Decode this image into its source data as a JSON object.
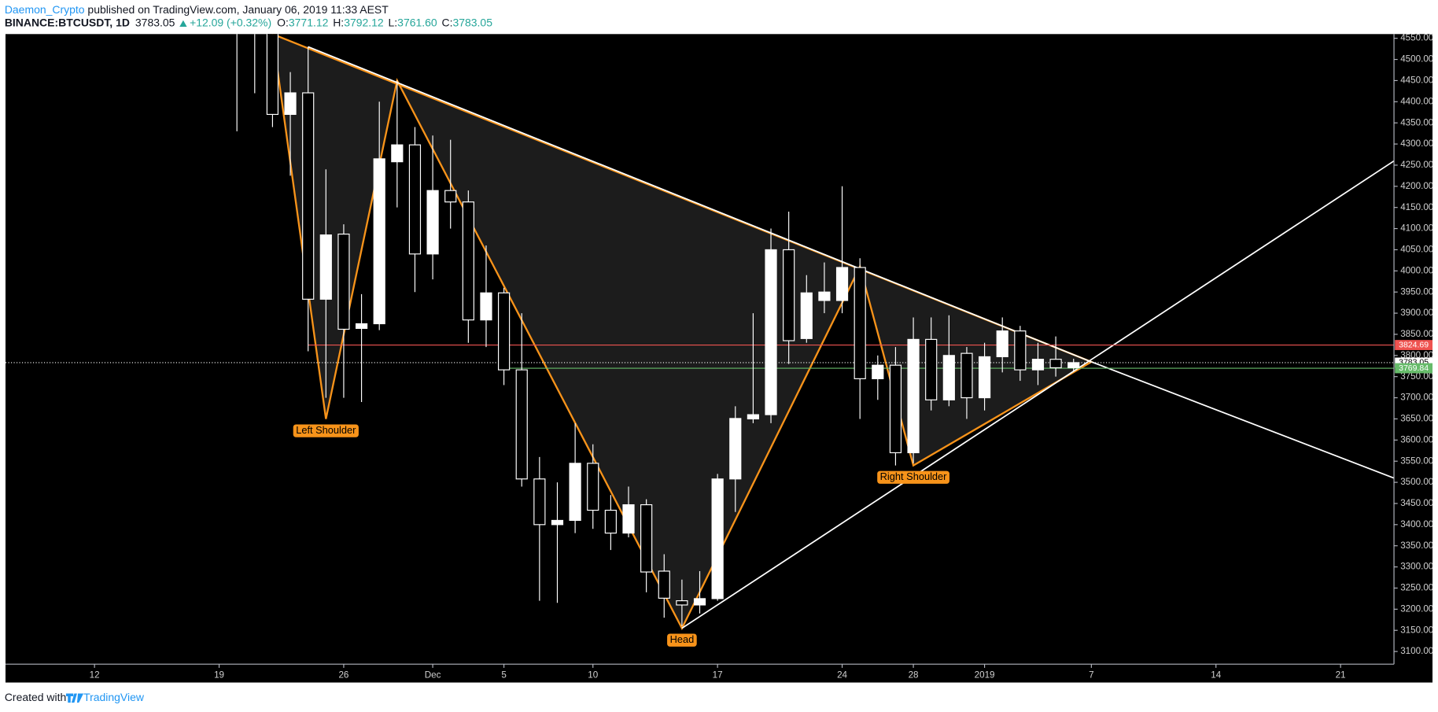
{
  "header": {
    "author": "Daemon_Crypto",
    "published": " published on TradingView.com, January 06, 2019 11:33 AEST",
    "symbol": "BINANCE:BTCUSDT, 1D",
    "last": "3783.05",
    "change": "+12.09 (+0.32%)",
    "open_label": "O:",
    "open": "3771.12",
    "high_label": "H:",
    "high": "3792.12",
    "low_label": "L:",
    "low": "3761.60",
    "close_label": "C:",
    "close": "3783.05"
  },
  "footer": {
    "created": "Created with",
    "brand": "TradingView"
  },
  "chart_data": {
    "type": "candlestick",
    "x": [
      "Nov 20",
      "Nov 21",
      "Nov 22",
      "Nov 23",
      "Nov 24",
      "Nov 25",
      "Nov 26",
      "Nov 27",
      "Nov 28",
      "Nov 29",
      "Nov 30",
      "Dec 1",
      "Dec 2",
      "Dec 3",
      "Dec 4",
      "Dec 5",
      "Dec 6",
      "Dec 7",
      "Dec 8",
      "Dec 9",
      "Dec 10",
      "Dec 11",
      "Dec 12",
      "Dec 13",
      "Dec 14",
      "Dec 15",
      "Dec 16",
      "Dec 17",
      "Dec 18",
      "Dec 19",
      "Dec 20",
      "Dec 21",
      "Dec 22",
      "Dec 23",
      "Dec 24",
      "Dec 25",
      "Dec 26",
      "Dec 27",
      "Dec 28",
      "Dec 29",
      "Dec 30",
      "Dec 31",
      "Jan 1",
      "Jan 2",
      "Jan 3",
      "Jan 4",
      "Jan 5",
      "Jan 6"
    ],
    "open": [
      4700,
      4575,
      4565,
      4370,
      4421,
      3933,
      4087,
      3864,
      3875,
      4258,
      4298,
      4040,
      4190,
      4163,
      3884,
      3948,
      3766,
      3508,
      3400,
      3410,
      3545,
      3434,
      3380,
      3447,
      3290,
      3220,
      3210,
      3225,
      3508,
      3650,
      3660,
      4050,
      3840,
      3930,
      3930,
      4008,
      3745,
      3777,
      3570,
      3838,
      3695,
      3805,
      3700,
      3797,
      3858,
      3766,
      3791,
      3771.12
    ],
    "high": [
      4780,
      4620,
      4600,
      4470,
      4530,
      4240,
      4110,
      3945,
      4400,
      4450,
      4340,
      4320,
      4310,
      4190,
      4060,
      3960,
      3900,
      3560,
      3500,
      3640,
      3590,
      3470,
      3490,
      3460,
      3330,
      3270,
      3290,
      3520,
      3680,
      3900,
      4100,
      4140,
      3990,
      4020,
      4200,
      4030,
      3800,
      3820,
      3890,
      3890,
      3895,
      3820,
      3830,
      3890,
      3870,
      3830,
      3845,
      3792.12
    ],
    "low": [
      4330,
      4420,
      4340,
      4225,
      3810,
      3700,
      3700,
      3690,
      3860,
      4150,
      3950,
      3980,
      4100,
      3830,
      3820,
      3730,
      3490,
      3220,
      3215,
      3380,
      3390,
      3340,
      3370,
      3240,
      3180,
      3160,
      3190,
      3220,
      3430,
      3640,
      3640,
      3780,
      3830,
      3900,
      3900,
      3650,
      3695,
      3540,
      3545,
      3670,
      3680,
      3650,
      3670,
      3760,
      3740,
      3730,
      3750,
      3761.6
    ],
    "close": [
      4575,
      4565,
      4370,
      4421,
      3933,
      4085,
      3862,
      3875,
      4265,
      4298,
      4040,
      4190,
      4163,
      3884,
      3948,
      3766,
      3508,
      3400,
      3410,
      3545,
      3434,
      3380,
      3447,
      3288,
      3226,
      3210,
      3225,
      3508,
      3651,
      3660,
      4050,
      3835,
      3948,
      3950,
      4008,
      3745,
      3777,
      3570,
      3838,
      3695,
      3800,
      3700,
      3797,
      3858,
      3766,
      3791,
      3771,
      3783.05
    ],
    "up_color": "#ffffff",
    "down_color": "#000000",
    "xlim": [
      "Nov 7",
      "Jan 24"
    ],
    "xticks": [
      {
        "value": "Nov 12",
        "label": "12"
      },
      {
        "value": "Nov 19",
        "label": "19"
      },
      {
        "value": "Nov 26",
        "label": "26"
      },
      {
        "value": "Dec 1",
        "label": "Dec"
      },
      {
        "value": "Dec 5",
        "label": "5"
      },
      {
        "value": "Dec 10",
        "label": "10"
      },
      {
        "value": "Dec 17",
        "label": "17"
      },
      {
        "value": "Dec 24",
        "label": "24"
      },
      {
        "value": "Dec 28",
        "label": "28"
      },
      {
        "value": "Jan 1",
        "label": "2019"
      },
      {
        "value": "Jan 7",
        "label": "7"
      },
      {
        "value": "Jan 14",
        "label": "14"
      },
      {
        "value": "Jan 21",
        "label": "21"
      }
    ],
    "ylim": [
      3070,
      4560
    ],
    "yticks": [
      {
        "value": 3100,
        "label": "3100.00"
      },
      {
        "value": 3150,
        "label": "3150.00"
      },
      {
        "value": 3200,
        "label": "3200.00"
      },
      {
        "value": 3250,
        "label": "3250.00"
      },
      {
        "value": 3300,
        "label": "3300.00"
      },
      {
        "value": 3350,
        "label": "3350.00"
      },
      {
        "value": 3400,
        "label": "3400.00"
      },
      {
        "value": 3450,
        "label": "3450.00"
      },
      {
        "value": 3500,
        "label": "3500.00"
      },
      {
        "value": 3550,
        "label": "3550.00"
      },
      {
        "value": 3600,
        "label": "3600.00"
      },
      {
        "value": 3650,
        "label": "3650.00"
      },
      {
        "value": 3700,
        "label": "3700.00"
      },
      {
        "value": 3750,
        "label": "3750.00"
      },
      {
        "value": 3800,
        "label": "3800.00"
      },
      {
        "value": 3850,
        "label": "3850.00"
      },
      {
        "value": 3900,
        "label": "3900.00"
      },
      {
        "value": 3950,
        "label": "3950.00"
      },
      {
        "value": 4000,
        "label": "4000.00"
      },
      {
        "value": 4050,
        "label": "4050.00"
      },
      {
        "value": 4100,
        "label": "4100.00"
      },
      {
        "value": 4150,
        "label": "4150.00"
      },
      {
        "value": 4200,
        "label": "4200.00"
      },
      {
        "value": 4250,
        "label": "4250.00"
      },
      {
        "value": 4300,
        "label": "4300.00"
      },
      {
        "value": 4350,
        "label": "4350.00"
      },
      {
        "value": 4400,
        "label": "4400.00"
      },
      {
        "value": 4450,
        "label": "4450.00"
      },
      {
        "value": 4500,
        "label": "4500.00"
      },
      {
        "value": 4550,
        "label": "4550.00"
      }
    ],
    "price_lines": [
      {
        "value": 3824.69,
        "color": "#ef5350",
        "from": "Nov 24"
      },
      {
        "value": 3783.05,
        "color": "#ffffff",
        "dotted": true
      },
      {
        "value": 3769.84,
        "color": "#66bb6a",
        "from": "Dec 5"
      }
    ],
    "drawings": [
      {
        "type": "polygon",
        "color": "#f7931a",
        "fill": "#1c1c1c",
        "x": [
          "Nov 22",
          "Nov 25",
          "Nov 29",
          "Dec 15",
          "Dec 25",
          "Dec 28",
          "Jan 7"
        ],
        "y": [
          4560,
          3650,
          4450,
          3155,
          4010,
          3540,
          3785
        ]
      },
      {
        "type": "line",
        "color": "#ffffff",
        "x": [
          "Nov 24",
          "Jan 7"
        ],
        "y": [
          4530,
          3785
        ]
      },
      {
        "type": "line",
        "color": "#ffffff",
        "x": [
          "Dec 15",
          "Jan 24"
        ],
        "y": [
          3155,
          4260
        ]
      },
      {
        "type": "line",
        "color": "#ffffff",
        "x": [
          "Jan 7",
          "Jan 24"
        ],
        "y": [
          3785,
          3510
        ]
      }
    ],
    "annotations": [
      {
        "text": "Left Shoulder",
        "x": "Nov 25",
        "y": 3650
      },
      {
        "text": "Head",
        "x": "Dec 15",
        "y": 3155
      },
      {
        "text": "Right Shoulder",
        "x": "Dec 28",
        "y": 3540
      }
    ]
  }
}
